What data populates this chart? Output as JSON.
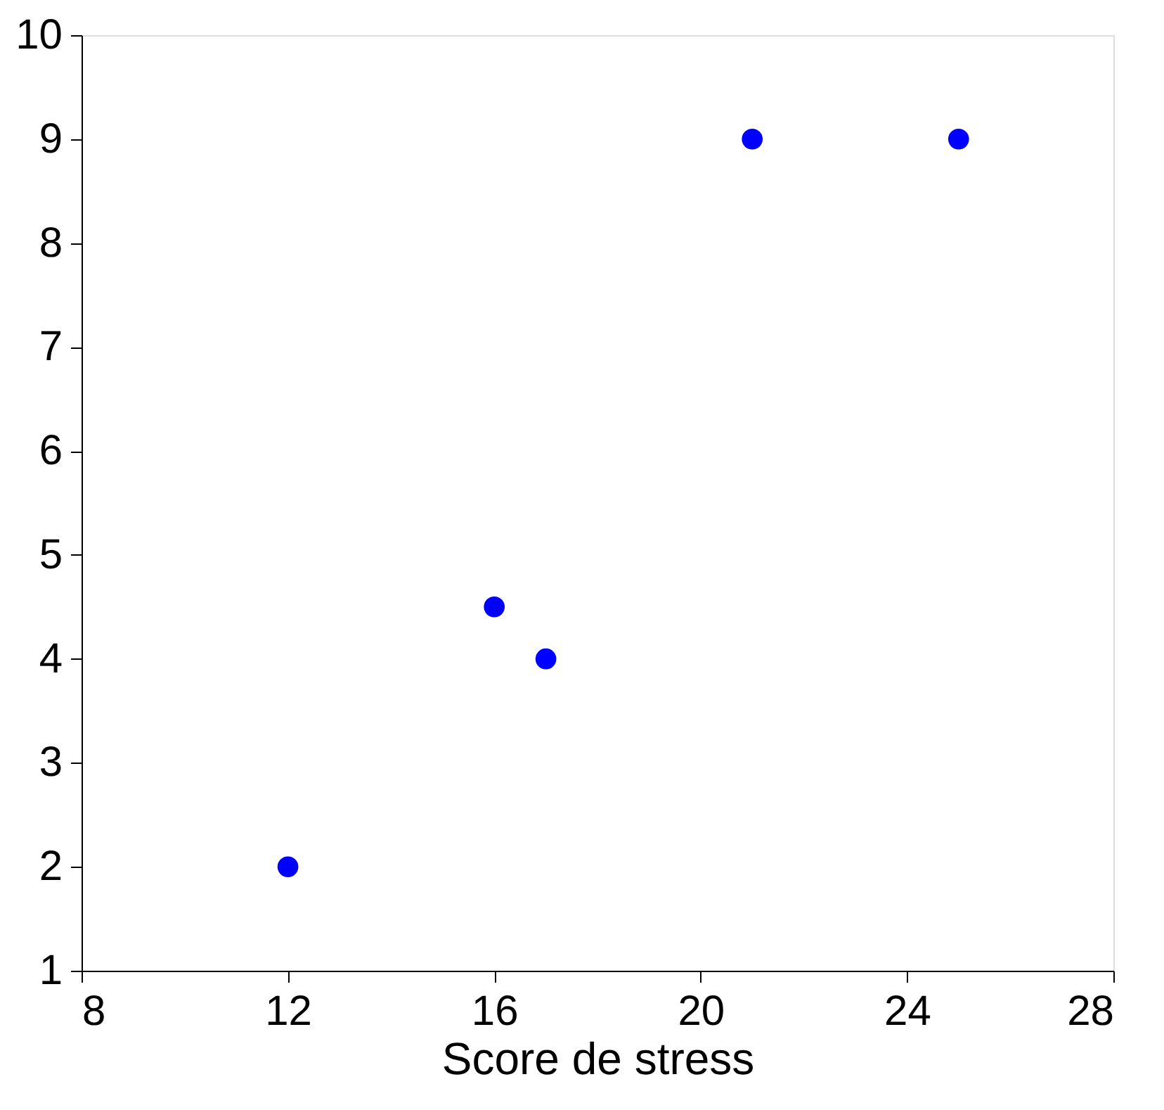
{
  "chart_data": {
    "type": "scatter",
    "xlabel": "Score de stress",
    "x": [
      12,
      16,
      17,
      21,
      25
    ],
    "series": [
      {
        "color": "#0000ff",
        "values": [
          2,
          4.5,
          4,
          9,
          9
        ]
      }
    ],
    "xlim": [
      8,
      28
    ],
    "xticks": [
      8,
      12,
      16,
      20,
      24,
      28
    ],
    "ylim": [
      1,
      10
    ],
    "yticks": [
      1,
      2,
      3,
      4,
      5,
      6,
      7,
      8,
      9,
      10
    ],
    "marker": "circle",
    "grid": false
  }
}
